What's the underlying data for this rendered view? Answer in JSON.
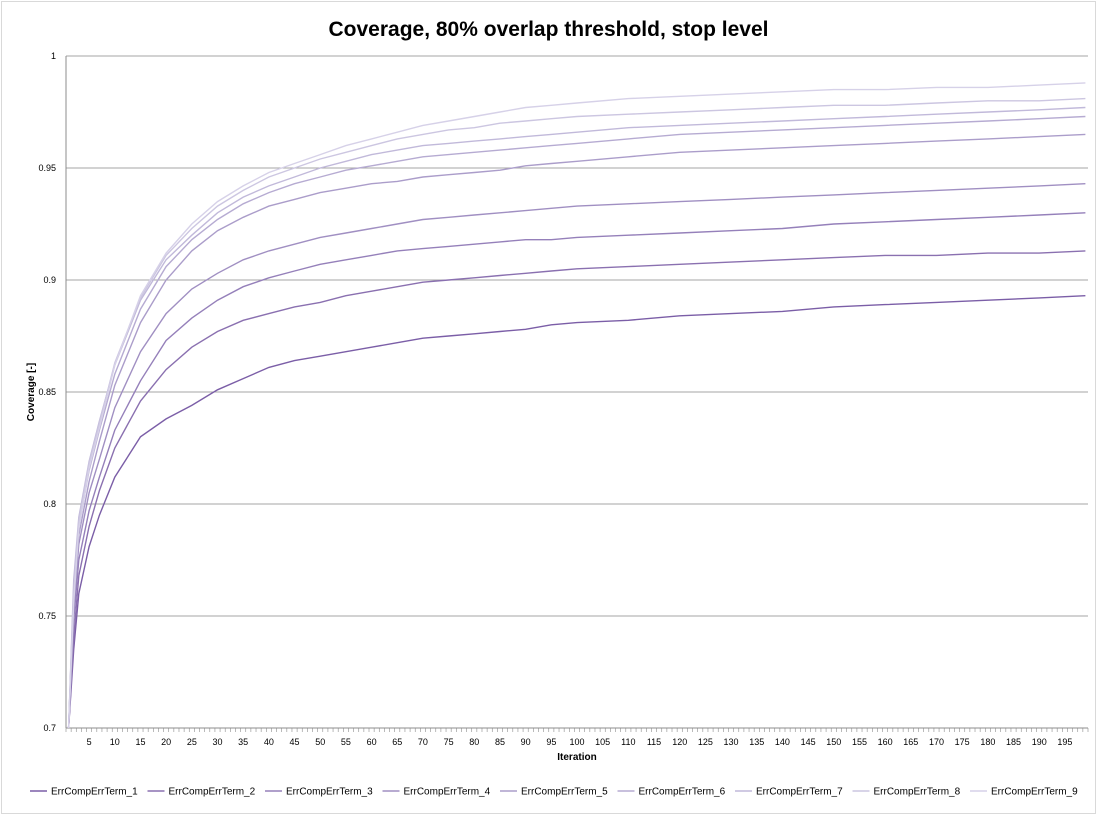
{
  "chart_data": {
    "type": "line",
    "title": "Coverage, 80% overlap threshold, stop level",
    "xlabel": "Iteration",
    "ylabel": "Coverage [-]",
    "xlim": [
      1,
      199
    ],
    "ylim": [
      0.7,
      1.0
    ],
    "yticks": [
      "0.7",
      "0.75",
      "0.8",
      "0.85",
      "0.9",
      "0.95",
      "1"
    ],
    "xticks": [
      5,
      10,
      15,
      20,
      25,
      30,
      35,
      40,
      45,
      50,
      55,
      60,
      65,
      70,
      75,
      80,
      85,
      90,
      95,
      100,
      105,
      110,
      115,
      120,
      125,
      130,
      135,
      140,
      145,
      150,
      155,
      160,
      165,
      170,
      175,
      180,
      185,
      190,
      195
    ],
    "grid": "horizontal",
    "legend_position": "bottom",
    "x": [
      1,
      2,
      3,
      5,
      7,
      10,
      15,
      20,
      25,
      30,
      35,
      40,
      45,
      50,
      55,
      60,
      65,
      70,
      75,
      80,
      85,
      90,
      95,
      100,
      110,
      120,
      130,
      140,
      150,
      160,
      170,
      180,
      190,
      199
    ],
    "series": [
      {
        "name": "ErrCompErrTerm_1",
        "color": "#7b5ea7",
        "values": [
          0.7,
          0.735,
          0.76,
          0.781,
          0.795,
          0.812,
          0.83,
          0.838,
          0.844,
          0.851,
          0.856,
          0.861,
          0.864,
          0.866,
          0.868,
          0.87,
          0.872,
          0.874,
          0.875,
          0.876,
          0.877,
          0.878,
          0.88,
          0.881,
          0.882,
          0.884,
          0.885,
          0.886,
          0.888,
          0.889,
          0.89,
          0.891,
          0.892,
          0.893
        ]
      },
      {
        "name": "ErrCompErrTerm_2",
        "color": "#8a70b0",
        "values": [
          0.7,
          0.74,
          0.768,
          0.79,
          0.806,
          0.825,
          0.846,
          0.86,
          0.87,
          0.877,
          0.882,
          0.885,
          0.888,
          0.89,
          0.893,
          0.895,
          0.897,
          0.899,
          0.9,
          0.901,
          0.902,
          0.903,
          0.904,
          0.905,
          0.906,
          0.907,
          0.908,
          0.909,
          0.91,
          0.911,
          0.911,
          0.912,
          0.912,
          0.913
        ]
      },
      {
        "name": "ErrCompErrTerm_3",
        "color": "#9580ba",
        "values": [
          0.7,
          0.748,
          0.775,
          0.797,
          0.812,
          0.833,
          0.855,
          0.873,
          0.883,
          0.891,
          0.897,
          0.901,
          0.904,
          0.907,
          0.909,
          0.911,
          0.913,
          0.914,
          0.915,
          0.916,
          0.917,
          0.918,
          0.918,
          0.919,
          0.92,
          0.921,
          0.922,
          0.923,
          0.925,
          0.926,
          0.927,
          0.928,
          0.929,
          0.93
        ]
      },
      {
        "name": "ErrCompErrTerm_4",
        "color": "#a08fc2",
        "values": [
          0.7,
          0.753,
          0.782,
          0.805,
          0.82,
          0.843,
          0.868,
          0.885,
          0.896,
          0.903,
          0.909,
          0.913,
          0.916,
          0.919,
          0.921,
          0.923,
          0.925,
          0.927,
          0.928,
          0.929,
          0.93,
          0.931,
          0.932,
          0.933,
          0.934,
          0.935,
          0.936,
          0.937,
          0.938,
          0.939,
          0.94,
          0.941,
          0.942,
          0.943
        ]
      },
      {
        "name": "ErrCompErrTerm_5",
        "color": "#ab9dca",
        "values": [
          0.7,
          0.758,
          0.786,
          0.81,
          0.828,
          0.853,
          0.881,
          0.9,
          0.913,
          0.922,
          0.928,
          0.933,
          0.936,
          0.939,
          0.941,
          0.943,
          0.944,
          0.946,
          0.947,
          0.948,
          0.949,
          0.951,
          0.952,
          0.953,
          0.955,
          0.957,
          0.958,
          0.959,
          0.96,
          0.961,
          0.962,
          0.963,
          0.964,
          0.965
        ]
      },
      {
        "name": "ErrCompErrTerm_6",
        "color": "#b6abd2",
        "values": [
          0.7,
          0.762,
          0.79,
          0.815,
          0.833,
          0.858,
          0.887,
          0.906,
          0.918,
          0.927,
          0.934,
          0.939,
          0.943,
          0.946,
          0.949,
          0.951,
          0.953,
          0.955,
          0.956,
          0.957,
          0.958,
          0.959,
          0.96,
          0.961,
          0.963,
          0.965,
          0.966,
          0.967,
          0.968,
          0.969,
          0.97,
          0.971,
          0.972,
          0.973
        ]
      },
      {
        "name": "ErrCompErrTerm_7",
        "color": "#c1b9da",
        "values": [
          0.7,
          0.766,
          0.794,
          0.819,
          0.837,
          0.862,
          0.891,
          0.909,
          0.92,
          0.93,
          0.937,
          0.942,
          0.946,
          0.95,
          0.953,
          0.956,
          0.958,
          0.96,
          0.961,
          0.962,
          0.963,
          0.964,
          0.965,
          0.966,
          0.968,
          0.969,
          0.97,
          0.971,
          0.972,
          0.973,
          0.974,
          0.975,
          0.976,
          0.977
        ]
      },
      {
        "name": "ErrCompErrTerm_8",
        "color": "#ccc6e1",
        "values": [
          0.7,
          0.76,
          0.792,
          0.818,
          0.836,
          0.863,
          0.892,
          0.911,
          0.923,
          0.933,
          0.94,
          0.946,
          0.95,
          0.954,
          0.957,
          0.96,
          0.963,
          0.965,
          0.967,
          0.968,
          0.97,
          0.971,
          0.972,
          0.973,
          0.974,
          0.975,
          0.976,
          0.977,
          0.978,
          0.978,
          0.979,
          0.98,
          0.98,
          0.981
        ]
      },
      {
        "name": "ErrCompErrTerm_9",
        "color": "#d6d1e8",
        "values": [
          0.7,
          0.756,
          0.789,
          0.816,
          0.834,
          0.862,
          0.893,
          0.912,
          0.925,
          0.935,
          0.942,
          0.948,
          0.952,
          0.956,
          0.96,
          0.963,
          0.966,
          0.969,
          0.971,
          0.973,
          0.975,
          0.977,
          0.978,
          0.979,
          0.981,
          0.982,
          0.983,
          0.984,
          0.985,
          0.985,
          0.986,
          0.986,
          0.987,
          0.988
        ]
      }
    ]
  }
}
